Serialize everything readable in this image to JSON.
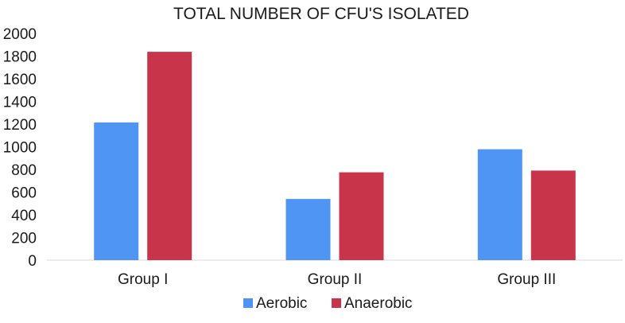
{
  "chart_data": {
    "type": "bar",
    "title": "TOTAL NUMBER OF CFU'S ISOLATED",
    "xlabel": "",
    "ylabel": "",
    "categories": [
      "Group I",
      "Group II",
      "Group III"
    ],
    "series": [
      {
        "name": "Aerobic",
        "color": "#4e95f4",
        "values": [
          1215,
          540,
          978
        ]
      },
      {
        "name": "Anaerobic",
        "color": "#c8344a",
        "values": [
          1838,
          775,
          790
        ]
      }
    ],
    "ylim": [
      0,
      2000
    ],
    "yticks": [
      "0",
      "200",
      "400",
      "600",
      "800",
      "1000",
      "1200",
      "1400",
      "1600",
      "1800",
      "2000"
    ],
    "grid": false,
    "legend_position": "bottom"
  }
}
